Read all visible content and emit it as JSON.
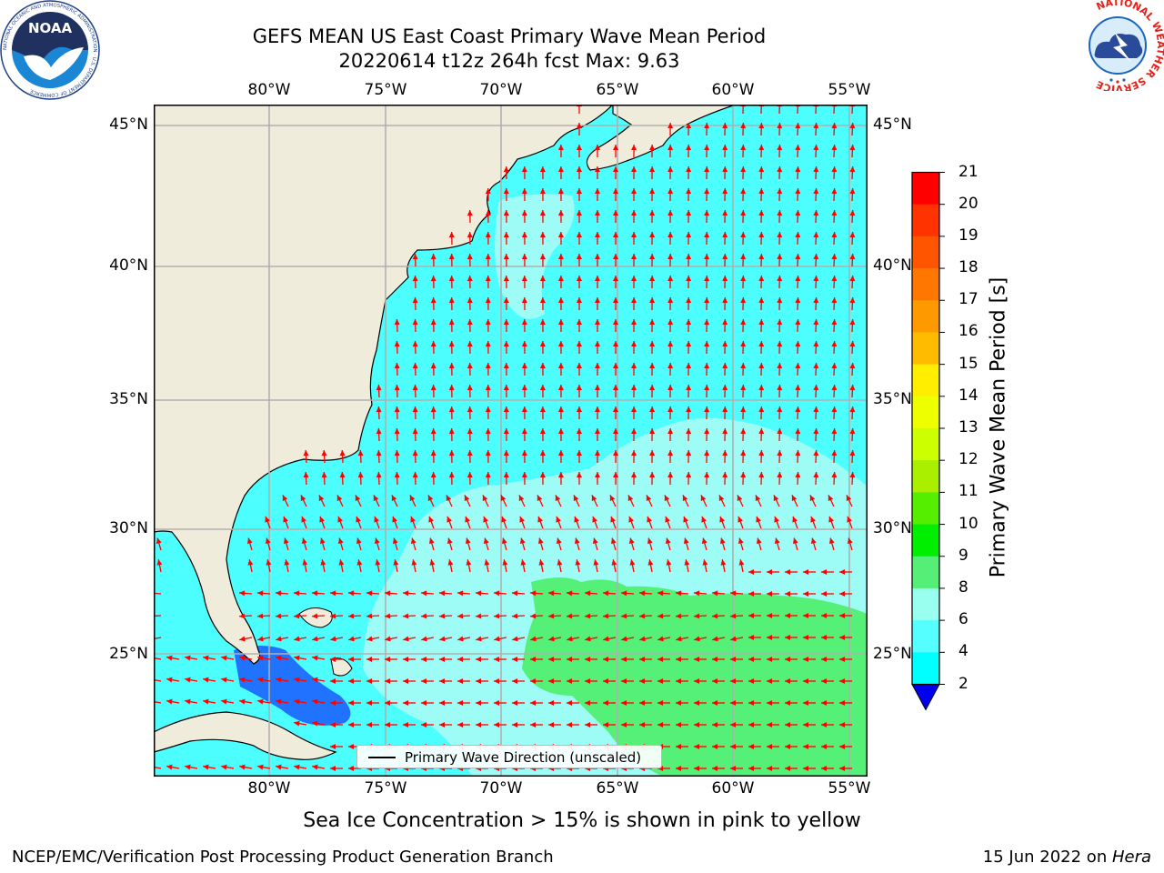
{
  "header": {
    "title_line1": "GEFS MEAN US East Coast Primary Wave Mean Period",
    "title_line2": "20220614 t12z 264h fcst   Max: 9.63"
  },
  "map": {
    "lon_labels": [
      "80°W",
      "75°W",
      "70°W",
      "65°W",
      "60°W",
      "55°W"
    ],
    "lat_labels": [
      "45°N",
      "40°N",
      "35°N",
      "30°N",
      "25°N"
    ],
    "land_color": "#efecdc",
    "grid_color": "#b0b0b0",
    "arrow_color": "#ff0000"
  },
  "legend": {
    "text": "Primary Wave Direction (unscaled)"
  },
  "colorbar": {
    "label": "Primary Wave Mean Period [s]",
    "ticks": [
      "21",
      "20",
      "19",
      "18",
      "17",
      "16",
      "15",
      "14",
      "13",
      "12",
      "11",
      "10",
      "9",
      "8",
      "6",
      "4",
      "2"
    ],
    "colors": [
      "#ff0000",
      "#ff3300",
      "#ff5500",
      "#ff7700",
      "#ff9900",
      "#ffbb00",
      "#ffee00",
      "#eeff00",
      "#ccff00",
      "#aaee00",
      "#55ee00",
      "#00ee00",
      "#55ee77",
      "#99ffee",
      "#55ffff",
      "#00ffff",
      "#00eeff",
      "#0077ff"
    ],
    "under_color": "#0000ee"
  },
  "captions": {
    "sea_ice": "Sea Ice Concentration > 15% is shown in pink to yellow",
    "credit": "NCEP/EMC/Verification Post Processing Product Generation Branch",
    "date": "15 Jun 2022 on ",
    "machine": "Hera"
  },
  "logos": {
    "left": "NOAA",
    "left_ring": "NATIONAL OCEANIC AND ATMOSPHERIC ADMINISTRATION · U.S. DEPARTMENT OF COMMERCE",
    "right_ring": "NATIONAL WEATHER SERVICE"
  }
}
